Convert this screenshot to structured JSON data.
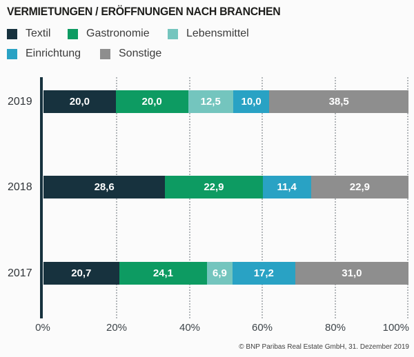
{
  "title": "VERMIETUNGEN / ERÖFFNUNGEN NACH BRANCHEN",
  "footer": "© BNP Paribas Real Estate GmbH, 31. Dezember 2019",
  "legend": {
    "items": [
      {
        "label": "Textil",
        "color": "#17323e"
      },
      {
        "label": "Gastronomie",
        "color": "#0d9b62"
      },
      {
        "label": "Lebensmittel",
        "color": "#74c5be"
      },
      {
        "label": "Einrichtung",
        "color": "#29a2c4"
      },
      {
        "label": "Sonstige",
        "color": "#8e8e8e"
      }
    ]
  },
  "chart_data": {
    "type": "bar",
    "orientation": "horizontal-stacked",
    "unit": "percent",
    "decimal_separator": ",",
    "title": "VERMIETUNGEN / ERÖFFNUNGEN NACH BRANCHEN",
    "categories": [
      "2019",
      "2018",
      "2017"
    ],
    "series": [
      {
        "name": "Textil",
        "color": "#17323e",
        "values": [
          20.0,
          28.6,
          20.7
        ]
      },
      {
        "name": "Gastronomie",
        "color": "#0d9b62",
        "values": [
          20.0,
          22.9,
          24.1
        ]
      },
      {
        "name": "Lebensmittel",
        "color": "#74c5be",
        "values": [
          12.5,
          null,
          6.9
        ]
      },
      {
        "name": "Einrichtung",
        "color": "#29a2c4",
        "values": [
          10.0,
          11.4,
          17.2
        ]
      },
      {
        "name": "Sonstige",
        "color": "#8e8e8e",
        "values": [
          38.5,
          22.9,
          31.0
        ]
      }
    ],
    "value_labels": {
      "2019": [
        "20,0",
        "20,0",
        "12,5",
        "10,0",
        "38,5"
      ],
      "2018": [
        "28,6",
        "22,9",
        "11,4",
        "22,9"
      ],
      "2017": [
        "20,7",
        "24,1",
        "6,9",
        "17,2",
        "31,0"
      ]
    },
    "x_ticks": [
      "0%",
      "20%",
      "40%",
      "60%",
      "80%",
      "100%"
    ],
    "xlim": [
      0,
      100
    ],
    "grid": "dotted-vertical-every-20pct",
    "legend_position": "top-left"
  }
}
